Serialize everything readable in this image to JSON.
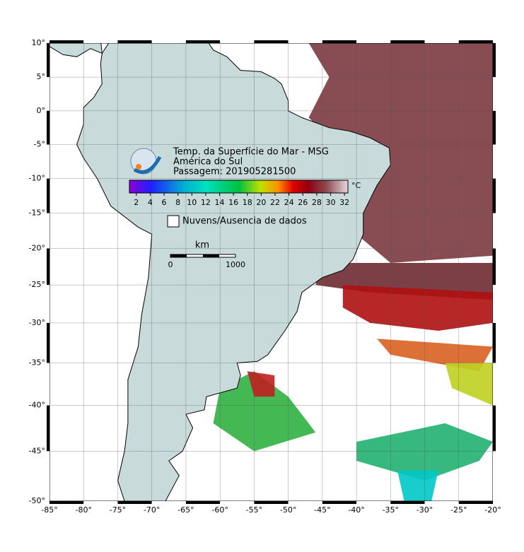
{
  "map": {
    "title_lines": [
      "Temp. da Superfície do Mar - MSG",
      "América do Sul",
      "Passagem: 201905281500"
    ],
    "colorbar": {
      "lim": [
        1,
        32.5
      ],
      "ticks": [
        2,
        4,
        6,
        8,
        10,
        12,
        14,
        16,
        18,
        20,
        22,
        24,
        26,
        28,
        30,
        32
      ],
      "unit": "°C"
    },
    "legend": "Nuvens/Ausencia de dados",
    "scale_bar": {
      "unit": "km",
      "labels": [
        "0",
        "1000"
      ]
    },
    "xlim": [
      -85,
      -20
    ],
    "ylim": [
      -50,
      10
    ],
    "xticks": [
      {
        "value": -85,
        "label": "-85°"
      },
      {
        "value": -80,
        "label": "-80°"
      },
      {
        "value": -75,
        "label": "-75°"
      },
      {
        "value": -70,
        "label": "-70°"
      },
      {
        "value": -65,
        "label": "-65°"
      },
      {
        "value": -60,
        "label": "-60°"
      },
      {
        "value": -55,
        "label": "-55°"
      },
      {
        "value": -50,
        "label": "-50°"
      },
      {
        "value": -45,
        "label": "-45°"
      },
      {
        "value": -40,
        "label": "-40°"
      },
      {
        "value": -35,
        "label": "-35°"
      },
      {
        "value": -30,
        "label": "-30°"
      },
      {
        "value": -25,
        "label": "-25°"
      },
      {
        "value": -20,
        "label": "-20°"
      }
    ],
    "yticks": [
      {
        "value": 10,
        "label": "10°"
      },
      {
        "value": 5,
        "label": "5°"
      },
      {
        "value": 0,
        "label": "0°"
      },
      {
        "value": -5,
        "label": "-5°"
      },
      {
        "value": -10,
        "label": "-10°"
      },
      {
        "value": -15,
        "label": "-15°"
      },
      {
        "value": -20,
        "label": "-20°"
      },
      {
        "value": -25,
        "label": "-25°"
      },
      {
        "value": -30,
        "label": "-30°"
      },
      {
        "value": -35,
        "label": "-35°"
      },
      {
        "value": -40,
        "label": "-40°"
      },
      {
        "value": -45,
        "label": "-45°"
      },
      {
        "value": -50,
        "label": "-50°"
      }
    ],
    "grid": true
  }
}
